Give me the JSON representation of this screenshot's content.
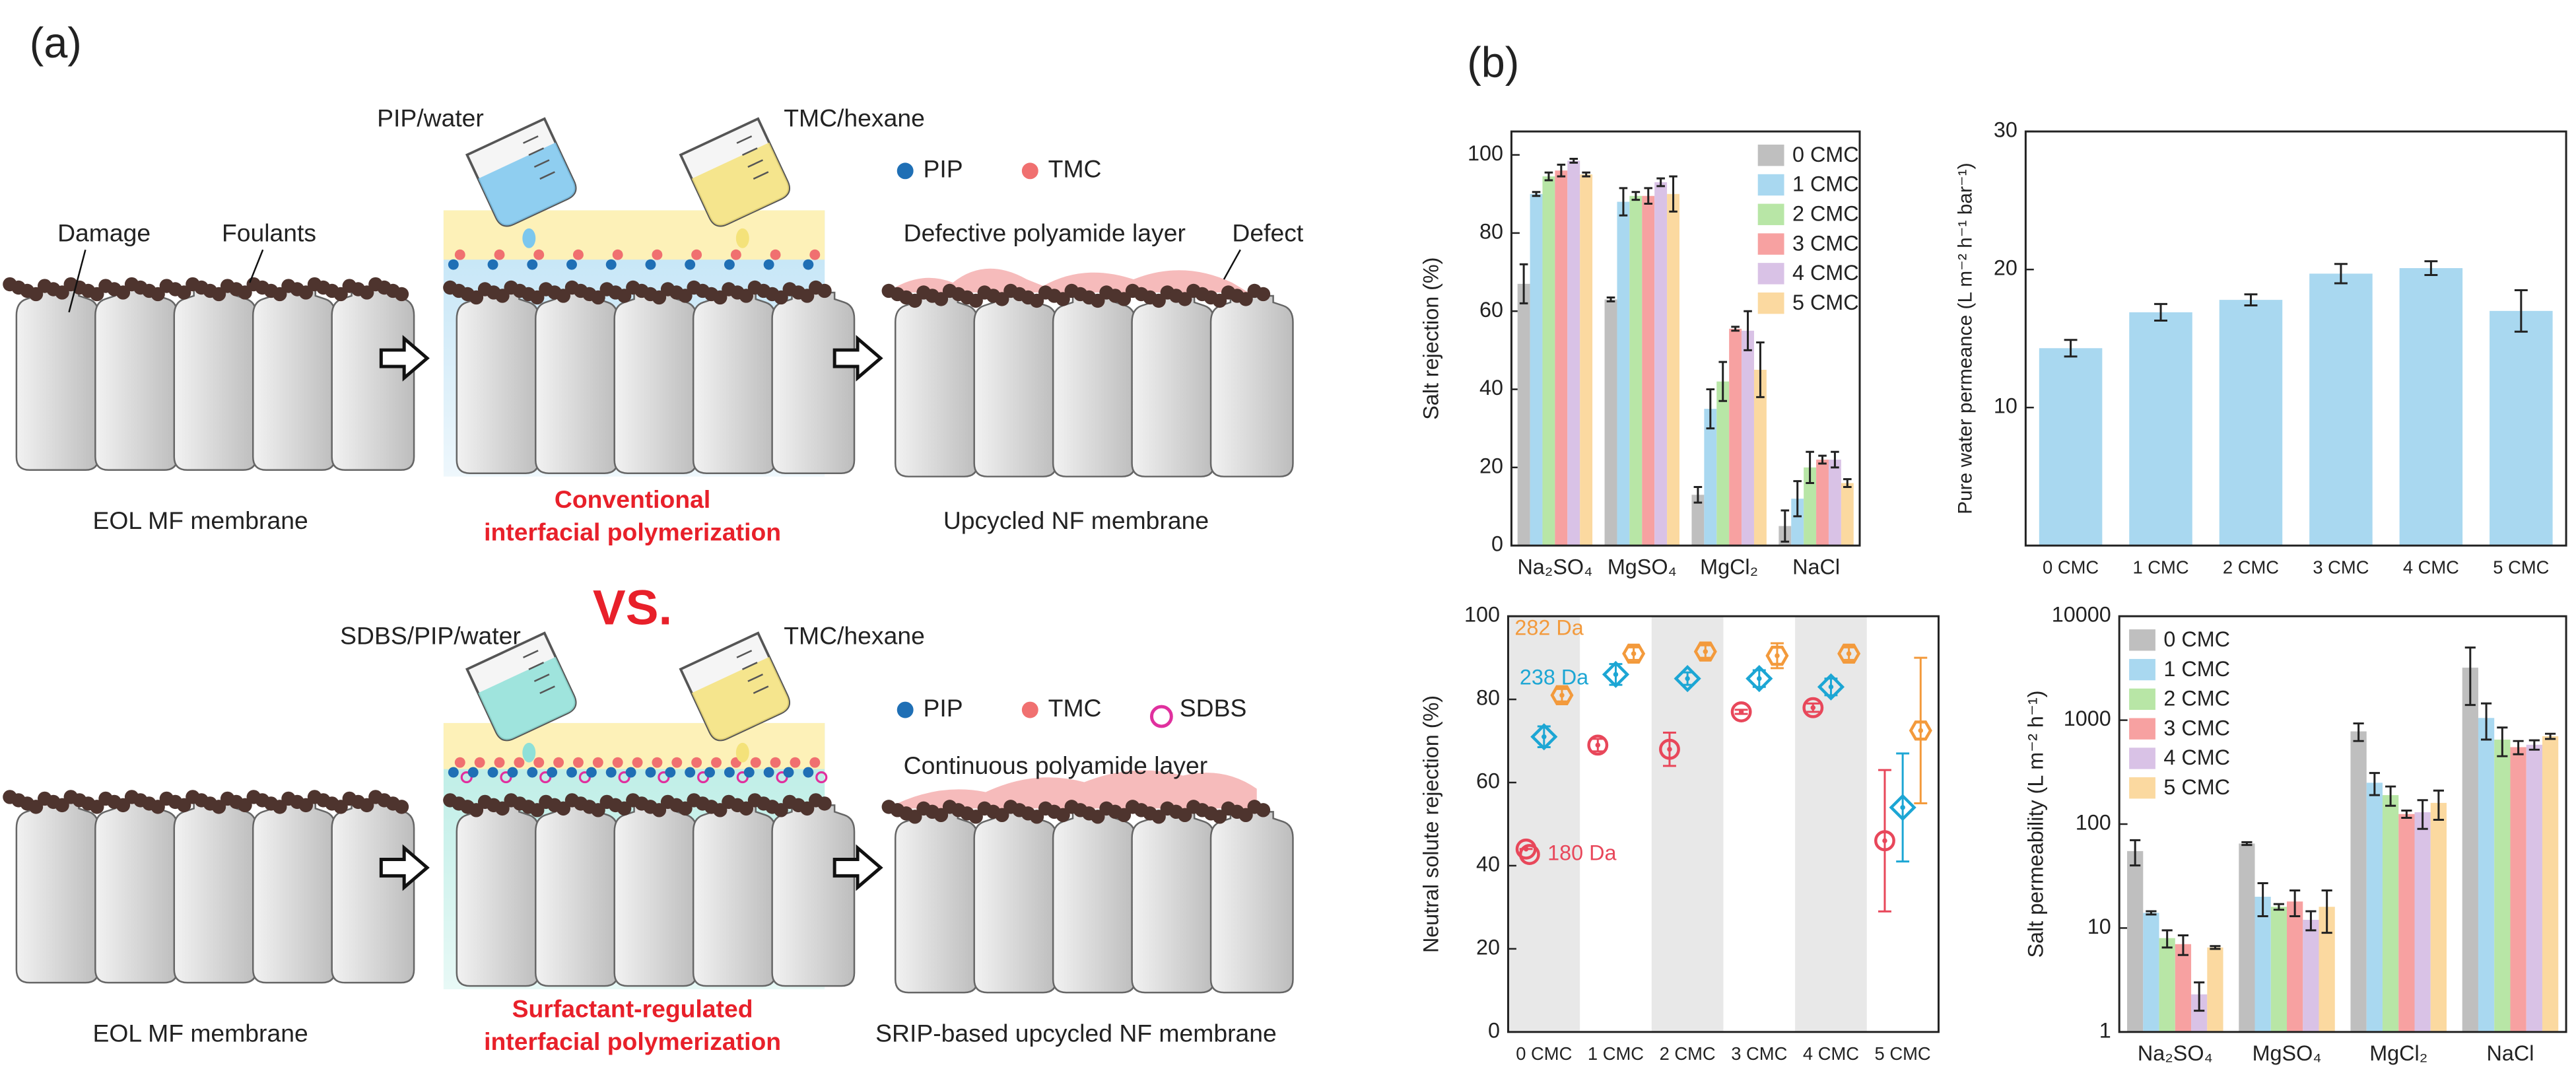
{
  "panel_labels": [
    "(a)",
    "(b)"
  ],
  "schematic": {
    "top": {
      "aqueous": "PIP/water",
      "organic": "TMC/hexane",
      "legend": [
        "PIP",
        "TMC"
      ],
      "damage": "Damage",
      "foulants": "Foulants",
      "layer": "Defective polyamide layer",
      "defect": "Defect",
      "substrate": "EOL MF membrane",
      "process": [
        "Conventional",
        "interfacial polymerization"
      ],
      "product": "Upcycled NF membrane"
    },
    "versus": "VS.",
    "bottom": {
      "aqueous": "SDBS/PIP/water",
      "organic": "TMC/hexane",
      "legend": [
        "PIP",
        "TMC",
        "SDBS"
      ],
      "layer": "Continuous polyamide layer",
      "substrate": "EOL MF membrane",
      "process": [
        "Surfactant-regulated",
        "interfacial polymerization"
      ],
      "product": "SRIP-based upcycled NF membrane"
    }
  },
  "chart_data": [
    {
      "type": "bar",
      "ylabel": "Salt rejection (%)",
      "categories": [
        "Na₂SO₄",
        "MgSO₄",
        "MgCl₂",
        "NaCl"
      ],
      "ylim": [
        0,
        106
      ],
      "yticks": [
        0,
        20,
        40,
        60,
        80,
        100
      ],
      "legend": "upper right",
      "series": [
        {
          "name": "0 CMC",
          "color": "#bfbfbf",
          "values": [
            67,
            63,
            13,
            5
          ],
          "errors": [
            5,
            0.5,
            2,
            4
          ]
        },
        {
          "name": "1 CMC",
          "color": "#a9d8f0",
          "values": [
            90,
            88,
            35,
            12
          ],
          "errors": [
            0.5,
            3.5,
            5,
            4.5
          ]
        },
        {
          "name": "2 CMC",
          "color": "#b8e6a6",
          "values": [
            94.5,
            89.5,
            42,
            20
          ],
          "errors": [
            1,
            1,
            5,
            4
          ]
        },
        {
          "name": "3 CMC",
          "color": "#f7a1a1",
          "values": [
            96,
            89.5,
            55.5,
            22
          ],
          "errors": [
            1.5,
            2,
            0.5,
            1
          ]
        },
        {
          "name": "4 CMC",
          "color": "#d9c2e6",
          "values": [
            98.5,
            93,
            55,
            22
          ],
          "errors": [
            0.5,
            1,
            5,
            2
          ]
        },
        {
          "name": "5 CMC",
          "color": "#fbd9a0",
          "values": [
            95,
            90,
            45,
            16
          ],
          "errors": [
            0.5,
            4.5,
            7,
            1
          ]
        }
      ]
    },
    {
      "type": "bar",
      "ylabel": "Pure water permeance (L m⁻² h⁻¹ bar⁻¹)",
      "categories": [
        "0 CMC",
        "1 CMC",
        "2 CMC",
        "3 CMC",
        "4 CMC",
        "5 CMC"
      ],
      "values": [
        14.3,
        16.9,
        17.8,
        19.7,
        20.1,
        17
      ],
      "errors": [
        0.6,
        0.6,
        0.4,
        0.7,
        0.5,
        1.5
      ],
      "color": "#a9d8f0",
      "ylim": [
        0,
        30
      ],
      "yticks": [
        10,
        20,
        30
      ]
    },
    {
      "type": "scatter",
      "ylabel": "Neutral solute rejection (%)",
      "categories": [
        "0 CMC",
        "1 CMC",
        "2 CMC",
        "3 CMC",
        "4 CMC",
        "5 CMC"
      ],
      "ylim": [
        0,
        100
      ],
      "yticks": [
        0,
        20,
        40,
        60,
        80,
        100
      ],
      "series": [
        {
          "name": "180 Da",
          "color": "#e8475a",
          "marker": "circle",
          "values": [
            44,
            69,
            68,
            77,
            78,
            46
          ],
          "errors": [
            0,
            1.5,
            4,
            0.5,
            1,
            17
          ]
        },
        {
          "name": "238 Da",
          "color": "#1ca6d4",
          "marker": "diamond",
          "values": [
            71,
            86,
            85,
            85,
            83,
            54
          ],
          "errors": [
            2.5,
            2.5,
            1.5,
            2,
            2,
            13
          ]
        },
        {
          "name": "282 Da",
          "color": "#f39a3c",
          "marker": "hexagon",
          "values": [
            81,
            91,
            91.5,
            90.5,
            91,
            72.5
          ],
          "errors": [
            1.5,
            1.5,
            1.5,
            3,
            1.5,
            17.5
          ]
        }
      ]
    },
    {
      "type": "bar",
      "ylabel": "Salt permeability (L m⁻² h⁻¹)",
      "log_y": true,
      "categories": [
        "Na₂SO₄",
        "MgSO₄",
        "MgCl₂",
        "NaCl"
      ],
      "ylim": [
        1,
        10000
      ],
      "yticks": [
        1,
        10,
        100,
        1000,
        10000
      ],
      "legend": "upper left",
      "series": [
        {
          "name": "0 CMC",
          "color": "#bfbfbf",
          "values": [
            55,
            65,
            780,
            3200
          ],
          "errors": [
            15,
            2,
            150,
            1800
          ]
        },
        {
          "name": "1 CMC",
          "color": "#a9d8f0",
          "values": [
            14,
            20,
            250,
            1050
          ],
          "errors": [
            0.5,
            7,
            60,
            400
          ]
        },
        {
          "name": "2 CMC",
          "color": "#b8e6a6",
          "values": [
            8,
            16,
            190,
            650
          ],
          "errors": [
            1.5,
            1,
            40,
            200
          ]
        },
        {
          "name": "3 CMC",
          "color": "#f7a1a1",
          "values": [
            7,
            18,
            125,
            550
          ],
          "errors": [
            1.5,
            5,
            10,
            80
          ]
        },
        {
          "name": "4 CMC",
          "color": "#d9c2e6",
          "values": [
            2.3,
            12,
            130,
            580
          ],
          "errors": [
            0.7,
            2.5,
            40,
            60
          ]
        },
        {
          "name": "5 CMC",
          "color": "#fbd9a0",
          "values": [
            6.5,
            16,
            160,
            700
          ],
          "errors": [
            0.2,
            7,
            50,
            40
          ]
        }
      ]
    }
  ]
}
